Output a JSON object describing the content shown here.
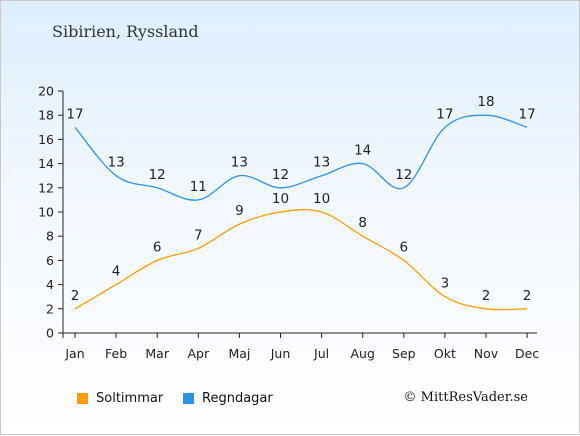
{
  "chart_data": {
    "type": "line",
    "title": "Sibirien, Ryssland",
    "categories": [
      "Jan",
      "Feb",
      "Mar",
      "Apr",
      "Maj",
      "Jun",
      "Jul",
      "Aug",
      "Sep",
      "Okt",
      "Nov",
      "Dec"
    ],
    "series": [
      {
        "name": "Soltimmar",
        "color": "#ff9d00",
        "values": [
          2,
          4,
          6,
          7,
          9,
          10,
          10,
          8,
          6,
          3,
          2,
          2
        ]
      },
      {
        "name": "Regndagar",
        "color": "#2e93e6",
        "values": [
          17,
          13,
          12,
          11,
          13,
          12,
          13,
          14,
          12,
          17,
          18,
          17
        ]
      }
    ],
    "ylim": [
      0,
      20
    ],
    "yticks": [
      0,
      2,
      4,
      6,
      8,
      10,
      12,
      14,
      16,
      18,
      20
    ],
    "grid": false,
    "legend_position": "bottom-left"
  },
  "credit": "© MittResVader.se"
}
